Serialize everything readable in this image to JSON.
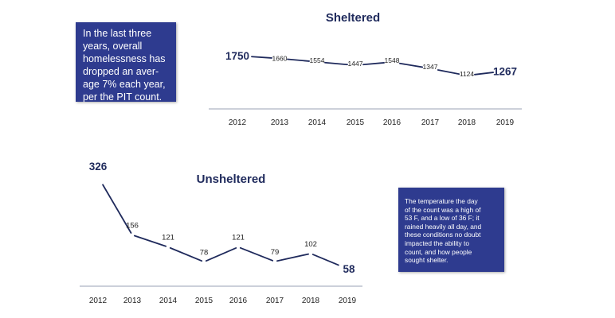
{
  "chart_data": [
    {
      "type": "line",
      "title": "Sheltered",
      "categories": [
        "2012",
        "2013",
        "2014",
        "2015",
        "2016",
        "2017",
        "2018",
        "2019"
      ],
      "values": [
        1750,
        1660,
        1554,
        1447,
        1548,
        1347,
        1124,
        1267
      ],
      "xlabel": "",
      "ylabel": "",
      "ylim": [
        0,
        2400
      ],
      "grid": false
    },
    {
      "type": "line",
      "title": "Unsheltered",
      "categories": [
        "2012",
        "2013",
        "2014",
        "2015",
        "2016",
        "2017",
        "2018",
        "2019"
      ],
      "values": [
        326,
        156,
        121,
        78,
        121,
        79,
        102,
        58
      ],
      "xlabel": "",
      "ylabel": "",
      "ylim": [
        0,
        330
      ],
      "grid": false
    }
  ],
  "callouts": {
    "left": [
      "In the last three",
      "years, overall",
      "homelessness has",
      "dropped an aver-",
      "age 7% each year,",
      "per the PIT count."
    ],
    "right": [
      "The temperature the day",
      "of the count was a high of",
      "53 F, and a low of 36 F; it",
      "rained heavily all day, and",
      "these conditions no doubt",
      "impacted the ability to",
      "count, and how people",
      "sought shelter."
    ]
  },
  "colors": {
    "navy": "#1f2a5c",
    "box_fill": "#2e3b8f",
    "axis": "#9aa0b4",
    "text": "#222222"
  }
}
